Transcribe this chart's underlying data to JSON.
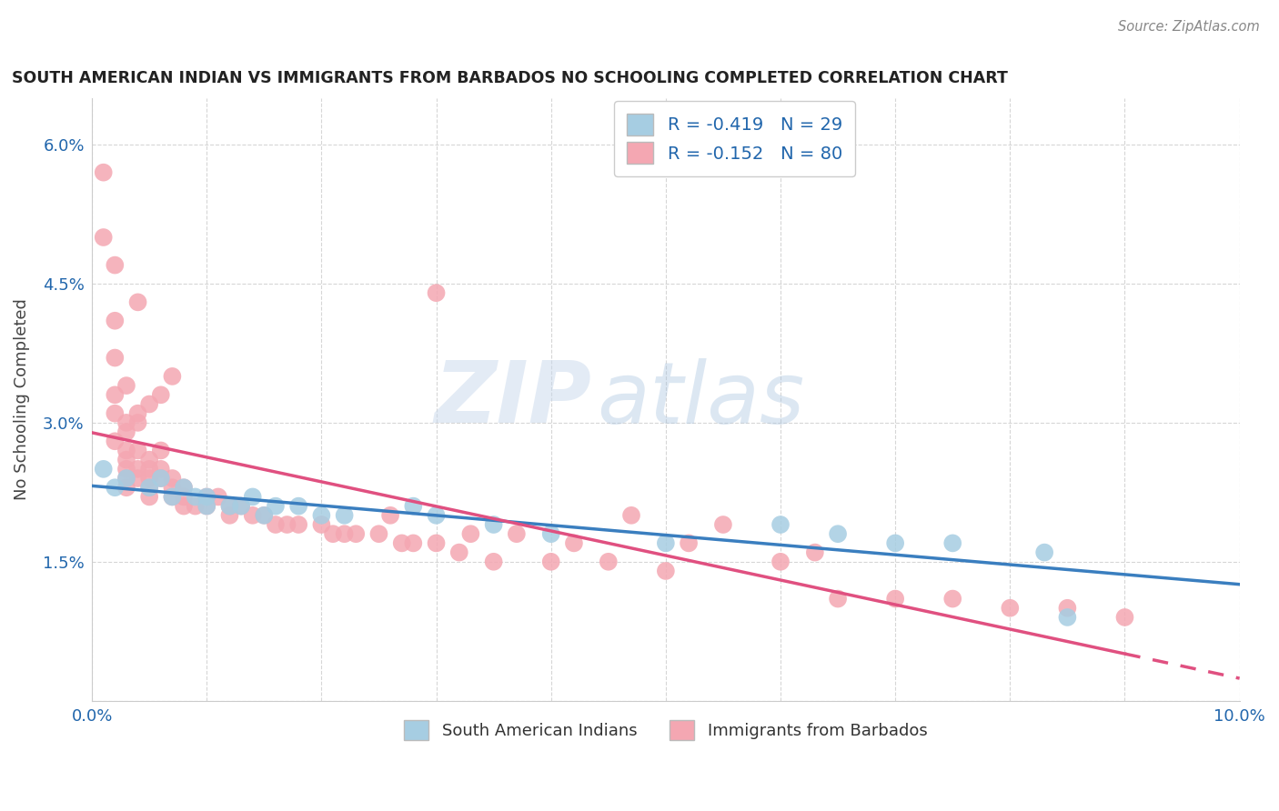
{
  "title": "SOUTH AMERICAN INDIAN VS IMMIGRANTS FROM BARBADOS NO SCHOOLING COMPLETED CORRELATION CHART",
  "source": "Source: ZipAtlas.com",
  "ylabel": "No Schooling Completed",
  "xlim": [
    0.0,
    0.1
  ],
  "ylim": [
    0.0,
    0.065
  ],
  "ytick_positions": [
    0.0,
    0.015,
    0.03,
    0.045,
    0.06
  ],
  "ytick_labels": [
    "",
    "1.5%",
    "3.0%",
    "4.5%",
    "6.0%"
  ],
  "xtick_positions": [
    0.0,
    0.01,
    0.02,
    0.03,
    0.04,
    0.05,
    0.06,
    0.07,
    0.08,
    0.09,
    0.1
  ],
  "xtick_labels": [
    "0.0%",
    "",
    "",
    "",
    "",
    "",
    "",
    "",
    "",
    "",
    "10.0%"
  ],
  "watermark_zip": "ZIP",
  "watermark_atlas": "atlas",
  "blue_color": "#a6cde2",
  "pink_color": "#f4a7b2",
  "line_blue_color": "#3a7ebf",
  "line_pink_color": "#e05080",
  "legend_r1": "-0.419",
  "legend_n1": "29",
  "legend_r2": "-0.152",
  "legend_n2": "80",
  "blue_scatter": [
    [
      0.001,
      0.025
    ],
    [
      0.002,
      0.023
    ],
    [
      0.003,
      0.024
    ],
    [
      0.005,
      0.023
    ],
    [
      0.006,
      0.024
    ],
    [
      0.007,
      0.022
    ],
    [
      0.008,
      0.023
    ],
    [
      0.009,
      0.022
    ],
    [
      0.01,
      0.022
    ],
    [
      0.01,
      0.021
    ],
    [
      0.012,
      0.021
    ],
    [
      0.013,
      0.021
    ],
    [
      0.014,
      0.022
    ],
    [
      0.015,
      0.02
    ],
    [
      0.016,
      0.021
    ],
    [
      0.018,
      0.021
    ],
    [
      0.02,
      0.02
    ],
    [
      0.022,
      0.02
    ],
    [
      0.028,
      0.021
    ],
    [
      0.03,
      0.02
    ],
    [
      0.035,
      0.019
    ],
    [
      0.04,
      0.018
    ],
    [
      0.05,
      0.017
    ],
    [
      0.06,
      0.019
    ],
    [
      0.065,
      0.018
    ],
    [
      0.07,
      0.017
    ],
    [
      0.075,
      0.017
    ],
    [
      0.083,
      0.016
    ],
    [
      0.085,
      0.009
    ]
  ],
  "pink_scatter": [
    [
      0.001,
      0.057
    ],
    [
      0.001,
      0.05
    ],
    [
      0.002,
      0.047
    ],
    [
      0.002,
      0.041
    ],
    [
      0.002,
      0.037
    ],
    [
      0.002,
      0.033
    ],
    [
      0.002,
      0.031
    ],
    [
      0.002,
      0.028
    ],
    [
      0.003,
      0.034
    ],
    [
      0.003,
      0.03
    ],
    [
      0.003,
      0.029
    ],
    [
      0.003,
      0.027
    ],
    [
      0.003,
      0.026
    ],
    [
      0.003,
      0.025
    ],
    [
      0.003,
      0.024
    ],
    [
      0.003,
      0.023
    ],
    [
      0.004,
      0.03
    ],
    [
      0.004,
      0.027
    ],
    [
      0.004,
      0.025
    ],
    [
      0.004,
      0.024
    ],
    [
      0.005,
      0.026
    ],
    [
      0.005,
      0.025
    ],
    [
      0.005,
      0.024
    ],
    [
      0.005,
      0.023
    ],
    [
      0.005,
      0.022
    ],
    [
      0.006,
      0.027
    ],
    [
      0.006,
      0.025
    ],
    [
      0.006,
      0.024
    ],
    [
      0.007,
      0.024
    ],
    [
      0.007,
      0.023
    ],
    [
      0.007,
      0.022
    ],
    [
      0.008,
      0.023
    ],
    [
      0.008,
      0.022
    ],
    [
      0.008,
      0.021
    ],
    [
      0.009,
      0.021
    ],
    [
      0.01,
      0.022
    ],
    [
      0.01,
      0.021
    ],
    [
      0.011,
      0.022
    ],
    [
      0.012,
      0.021
    ],
    [
      0.012,
      0.02
    ],
    [
      0.013,
      0.021
    ],
    [
      0.014,
      0.02
    ],
    [
      0.015,
      0.02
    ],
    [
      0.016,
      0.019
    ],
    [
      0.017,
      0.019
    ],
    [
      0.018,
      0.019
    ],
    [
      0.02,
      0.019
    ],
    [
      0.021,
      0.018
    ],
    [
      0.022,
      0.018
    ],
    [
      0.023,
      0.018
    ],
    [
      0.025,
      0.018
    ],
    [
      0.026,
      0.02
    ],
    [
      0.027,
      0.017
    ],
    [
      0.028,
      0.017
    ],
    [
      0.03,
      0.017
    ],
    [
      0.032,
      0.016
    ],
    [
      0.033,
      0.018
    ],
    [
      0.035,
      0.015
    ],
    [
      0.037,
      0.018
    ],
    [
      0.04,
      0.015
    ],
    [
      0.042,
      0.017
    ],
    [
      0.045,
      0.015
    ],
    [
      0.047,
      0.02
    ],
    [
      0.05,
      0.014
    ],
    [
      0.052,
      0.017
    ],
    [
      0.055,
      0.019
    ],
    [
      0.06,
      0.015
    ],
    [
      0.063,
      0.016
    ],
    [
      0.065,
      0.011
    ],
    [
      0.07,
      0.011
    ],
    [
      0.075,
      0.011
    ],
    [
      0.08,
      0.01
    ],
    [
      0.085,
      0.01
    ],
    [
      0.09,
      0.009
    ],
    [
      0.004,
      0.043
    ],
    [
      0.03,
      0.044
    ],
    [
      0.007,
      0.035
    ],
    [
      0.006,
      0.033
    ],
    [
      0.005,
      0.032
    ],
    [
      0.004,
      0.031
    ]
  ]
}
